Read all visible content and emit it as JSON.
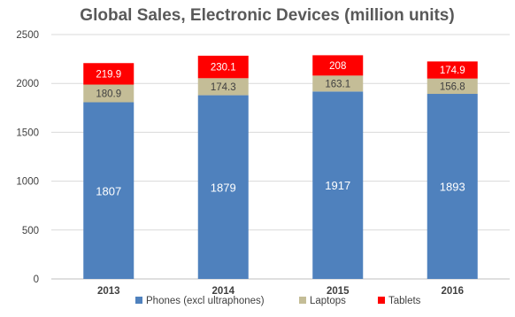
{
  "chart_data": {
    "type": "bar",
    "stacked": true,
    "title": "Global Sales, Electronic Devices (million units)",
    "xlabel": "",
    "ylabel": "",
    "categories": [
      "2013",
      "2014",
      "2015",
      "2016"
    ],
    "ylim": [
      0,
      2500
    ],
    "yticks": [
      "0",
      "500",
      "1000",
      "1500",
      "2000",
      "2500"
    ],
    "grid": true,
    "legend_position": "bottom",
    "series": [
      {
        "name": "Phones  (excl ultraphones)",
        "color": "#4f81bd",
        "values": [
          1807,
          1879,
          1917,
          1893
        ],
        "labels": [
          "1807",
          "1879",
          "1917",
          "1893"
        ]
      },
      {
        "name": "Laptops",
        "color": "#c4bd97",
        "values": [
          180.9,
          174.3,
          163.1,
          156.8
        ],
        "labels": [
          "180.9",
          "174.3",
          "163.1",
          "156.8"
        ]
      },
      {
        "name": "Tablets",
        "color": "#ff0000",
        "values": [
          219.9,
          230.1,
          208,
          174.9
        ],
        "labels": [
          "219.9",
          "230.1",
          "208",
          "174.9"
        ]
      }
    ]
  }
}
